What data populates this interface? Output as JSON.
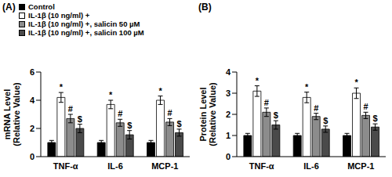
{
  "chart_data": [
    {
      "type": "bar",
      "title": "(A)",
      "y_label": [
        "mRNA Level",
        "(Relative Value)"
      ],
      "categories": [
        "TNF-α",
        "IL-6",
        "MCP-1"
      ],
      "ylim": [
        0,
        6
      ],
      "yticks": [
        0,
        2,
        4,
        6
      ],
      "grid": false,
      "series": [
        {
          "name": "Control",
          "color": "#000000",
          "values": [
            1.0,
            1.0,
            1.0
          ],
          "errors": [
            0.15,
            0.15,
            0.15
          ]
        },
        {
          "name": "IL-1β (10 ng/ml) +",
          "color": "#ffffff",
          "values": [
            4.2,
            3.7,
            4.0
          ],
          "errors": [
            0.35,
            0.3,
            0.3
          ],
          "significance": "*"
        },
        {
          "name": "IL-1β (10 ng/ml) +, salicin 50 µM",
          "color": "#8c8c8c",
          "values": [
            2.7,
            2.4,
            2.45
          ],
          "errors": [
            0.3,
            0.25,
            0.25
          ],
          "significance": "#"
        },
        {
          "name": "IL-1β (10 ng/ml) +, salicin 100 µM",
          "color": "#4a4a4a",
          "values": [
            2.0,
            1.55,
            1.7
          ],
          "errors": [
            0.3,
            0.3,
            0.25
          ],
          "significance": "$"
        }
      ]
    },
    {
      "type": "bar",
      "title": "(B)",
      "y_label": [
        "Protein Level",
        "(Relative Value)"
      ],
      "categories": [
        "TNF-α",
        "IL-6",
        "MCP-1"
      ],
      "ylim": [
        0,
        4
      ],
      "yticks": [
        0,
        1,
        2,
        3,
        4
      ],
      "grid": false,
      "series": [
        {
          "name": "Control",
          "color": "#000000",
          "values": [
            1.0,
            1.0,
            1.0
          ],
          "errors": [
            0.1,
            0.1,
            0.1
          ]
        },
        {
          "name": "IL-1β (10 ng/ml) +",
          "color": "#ffffff",
          "values": [
            3.1,
            2.8,
            3.0
          ],
          "errors": [
            0.25,
            0.25,
            0.25
          ],
          "significance": "*"
        },
        {
          "name": "IL-1β (10 ng/ml) +, salicin 50 µM",
          "color": "#8c8c8c",
          "values": [
            2.1,
            1.9,
            1.95
          ],
          "errors": [
            0.2,
            0.15,
            0.15
          ],
          "significance": "#"
        },
        {
          "name": "IL-1β (10 ng/ml) +, salicin 100 µM",
          "color": "#4a4a4a",
          "values": [
            1.5,
            1.3,
            1.4
          ],
          "errors": [
            0.2,
            0.15,
            0.15
          ],
          "significance": "$"
        }
      ]
    }
  ]
}
